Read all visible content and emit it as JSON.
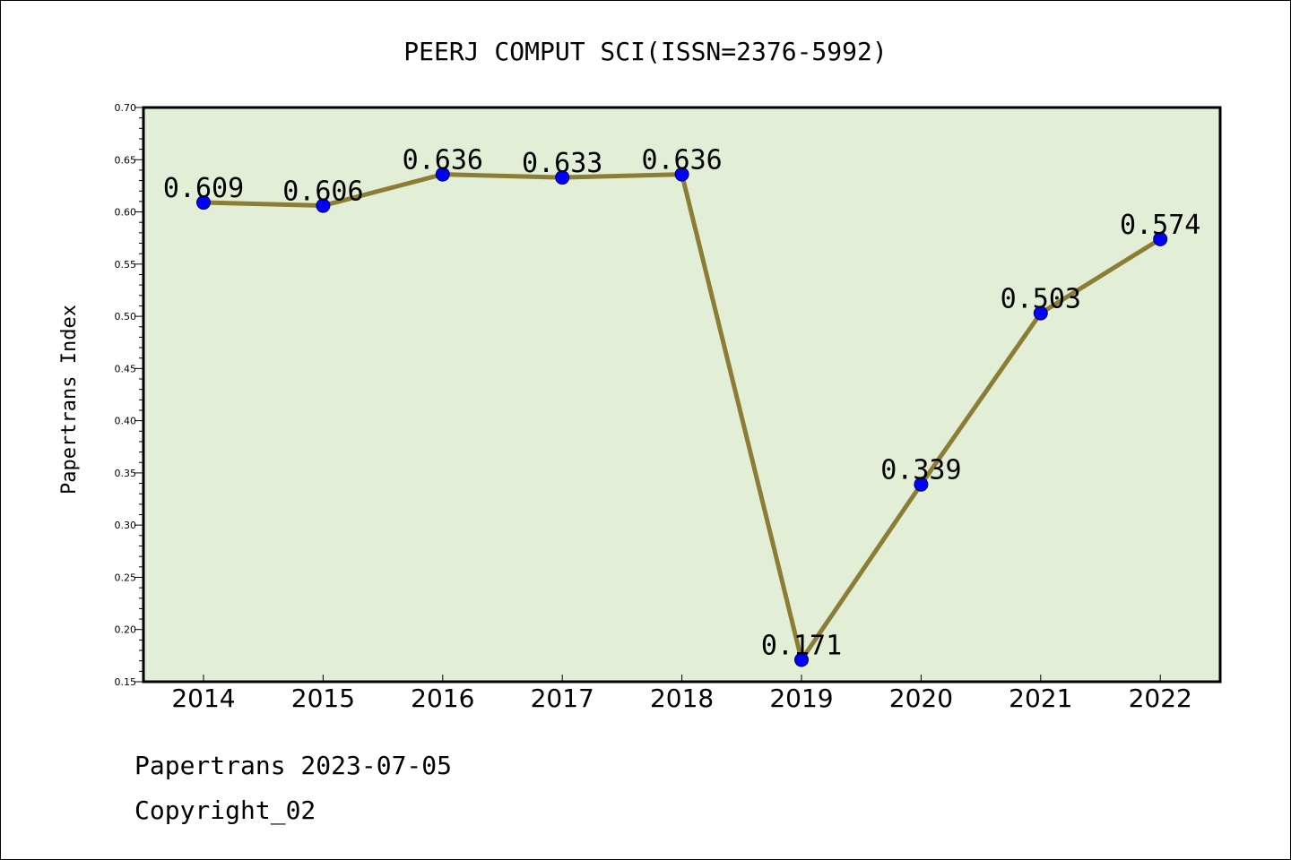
{
  "chart_data": {
    "type": "line",
    "title": "PEERJ COMPUT SCI(ISSN=2376-5992)",
    "xlabel": "",
    "ylabel": "Papertrans Index",
    "x": [
      "2014",
      "2015",
      "2016",
      "2017",
      "2018",
      "2019",
      "2020",
      "2021",
      "2022"
    ],
    "series": [
      {
        "values": [
          0.609,
          0.606,
          0.636,
          0.633,
          0.636,
          0.171,
          0.339,
          0.503,
          0.574
        ],
        "labels": [
          "0.609",
          "0.606",
          "0.636",
          "0.633",
          "0.636",
          "0.171",
          "0.339",
          "0.503",
          "0.574"
        ]
      }
    ],
    "ylim": [
      0.15,
      0.7
    ],
    "yticks": [
      "0.15",
      "0.20",
      "0.25",
      "0.30",
      "0.35",
      "0.40",
      "0.45",
      "0.50",
      "0.55",
      "0.60",
      "0.65",
      "0.70"
    ],
    "grid": false,
    "legend": "none"
  },
  "footer": {
    "line1": "Papertrans 2023-07-05",
    "line2": "Copyright_02"
  },
  "colors": {
    "plot_background": "#e2efd6",
    "line": "#8b7d35",
    "marker": "#0000ff",
    "axis": "#000000"
  }
}
